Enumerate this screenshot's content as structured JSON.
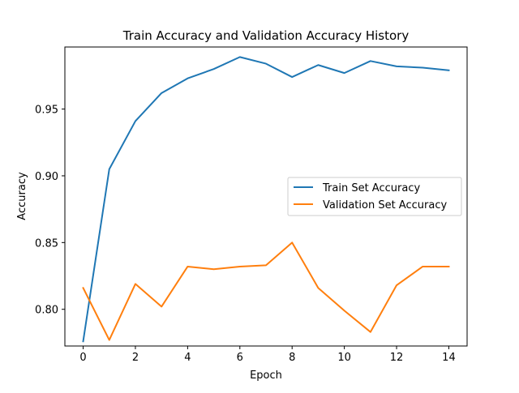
{
  "chart_data": {
    "type": "line",
    "title": "Train Accuracy and Validation Accuracy History",
    "xlabel": "Epoch",
    "ylabel": "Accuracy",
    "xlim": [
      -0.7,
      14.7
    ],
    "ylim": [
      0.7725,
      0.9965
    ],
    "xticks": [
      0,
      2,
      4,
      6,
      8,
      10,
      12,
      14
    ],
    "xtick_labels": [
      "0",
      "2",
      "4",
      "6",
      "8",
      "10",
      "12",
      "14"
    ],
    "yticks": [
      0.8,
      0.85,
      0.9,
      0.95
    ],
    "ytick_labels": [
      "0.80",
      "0.85",
      "0.90",
      "0.95"
    ],
    "grid": false,
    "legend_position": "center-right",
    "x": [
      0,
      1,
      2,
      3,
      4,
      5,
      6,
      7,
      8,
      9,
      10,
      11,
      12,
      13,
      14
    ],
    "series": [
      {
        "name": "Train Set Accuracy",
        "color": "#1f77b4",
        "values": [
          0.776,
          0.905,
          0.941,
          0.962,
          0.973,
          0.98,
          0.989,
          0.984,
          0.974,
          0.983,
          0.977,
          0.986,
          0.982,
          0.981,
          0.979
        ]
      },
      {
        "name": "Validation Set Accuracy",
        "color": "#ff7f0e",
        "values": [
          0.816,
          0.777,
          0.819,
          0.802,
          0.832,
          0.83,
          0.832,
          0.833,
          0.85,
          0.816,
          0.799,
          0.783,
          0.818,
          0.832,
          0.832
        ]
      }
    ]
  }
}
